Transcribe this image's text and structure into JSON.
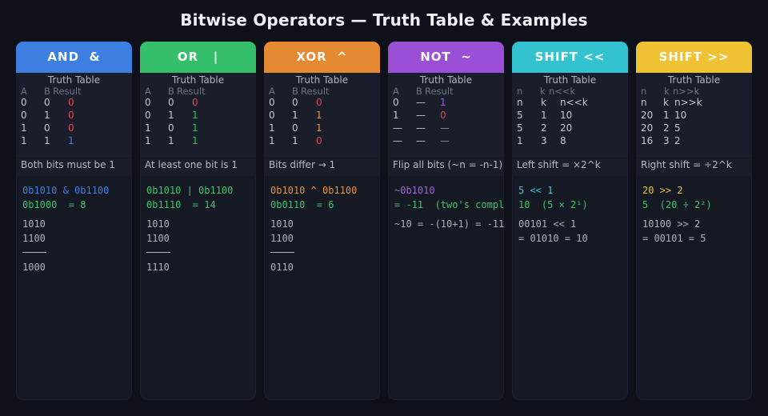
{
  "title": "Bitwise Operators — Truth Table & Examples",
  "panels": [
    {
      "header": "AND  &",
      "color": "#3d7fe0",
      "tt_title": "Truth Table",
      "cols": [
        "A",
        "B",
        "Result"
      ],
      "rows": [
        [
          "0",
          "0",
          "0"
        ],
        [
          "0",
          "1",
          "0"
        ],
        [
          "1",
          "0",
          "0"
        ],
        [
          "1",
          "1",
          "1"
        ]
      ],
      "result_colors": [
        "#e0434f",
        "#e0434f",
        "#e0434f",
        "#3d7fe0"
      ],
      "desc": "Both bits must be 1",
      "expr1": "0b1010 & 0b1100",
      "expr2": "0b1000  = 8",
      "expr1_color": "#3d7fe0",
      "expr2_color": "#3cc46b",
      "lines": [
        "1010",
        "1100"
      ],
      "result_line": "1000"
    },
    {
      "header": "OR   |",
      "color": "#36bf6a",
      "tt_title": "Truth Table",
      "cols": [
        "A",
        "B",
        "Result"
      ],
      "rows": [
        [
          "0",
          "0",
          "0"
        ],
        [
          "0",
          "1",
          "1"
        ],
        [
          "1",
          "0",
          "1"
        ],
        [
          "1",
          "1",
          "1"
        ]
      ],
      "result_colors": [
        "#e0434f",
        "#3cc46b",
        "#3cc46b",
        "#3cc46b"
      ],
      "desc": "At least one bit is 1",
      "expr1": "0b1010 | 0b1100",
      "expr2": "0b1110  = 14",
      "expr1_color": "#3cc46b",
      "expr2_color": "#3cc46b",
      "lines": [
        "1010",
        "1100"
      ],
      "result_line": "1110"
    },
    {
      "header": "XOR  ^",
      "color": "#e58a33",
      "tt_title": "Truth Table",
      "cols": [
        "A",
        "B",
        "Result"
      ],
      "rows": [
        [
          "0",
          "0",
          "0"
        ],
        [
          "0",
          "1",
          "1"
        ],
        [
          "1",
          "0",
          "1"
        ],
        [
          "1",
          "1",
          "0"
        ]
      ],
      "result_colors": [
        "#e0434f",
        "#e5913a",
        "#e5913a",
        "#e0434f"
      ],
      "desc": "Bits differ → 1",
      "expr1": "0b1010 ^ 0b1100",
      "expr2": "0b0110  = 6",
      "expr1_color": "#e5913a",
      "expr2_color": "#3cc46b",
      "lines": [
        "1010",
        "1100"
      ],
      "result_line": "0110"
    },
    {
      "header": "NOT  ~",
      "color": "#9a4fd6",
      "tt_title": "Truth Table",
      "cols": [
        "A",
        "B",
        "Result"
      ],
      "rows": [
        [
          "0",
          "—",
          "1"
        ],
        [
          "1",
          "—",
          "0"
        ],
        [
          "—",
          "—",
          "—"
        ],
        [
          "—",
          "—",
          "—"
        ]
      ],
      "result_colors": [
        "#a55ee0",
        "#e0434f",
        "#8a909c",
        "#8a909c"
      ],
      "desc": "Flip all bits (~n = -n-1)",
      "expr1": "~0b1010",
      "expr2": "= -11  (two's compl",
      "expr1_color": "#a55ee0",
      "expr2_color": "#3cc46b",
      "lines": [
        "~10 = -(10+1) = -11"
      ],
      "result_line": ""
    },
    {
      "header": "SHIFT <<",
      "color": "#33c3d0",
      "tt_title": "Truth Table",
      "cols": [
        "n",
        "k",
        "n<<k"
      ],
      "rows": [
        [
          "n",
          "k",
          "n<<k"
        ],
        [
          "5",
          "1",
          "10"
        ],
        [
          "5",
          "2",
          "20"
        ],
        [
          "1",
          "3",
          "8"
        ]
      ],
      "result_colors": [
        "#c3c8d2",
        "#c3c8d2",
        "#c3c8d2",
        "#c3c8d2"
      ],
      "desc": "Left shift = ×2^k",
      "expr1": "5 << 1",
      "expr2": "10  (5 × 2¹)",
      "expr1_color": "#3ec8d6",
      "expr2_color": "#3cc46b",
      "lines": [
        "00101 << 1",
        "= 01010 = 10"
      ],
      "result_line": ""
    },
    {
      "header": "SHIFT >>",
      "color": "#eec232",
      "tt_title": "Truth Table",
      "cols": [
        "n",
        "k",
        "n>>k"
      ],
      "rows": [
        [
          "n",
          "k",
          "n>>k"
        ],
        [
          "20",
          "1",
          "10"
        ],
        [
          "20",
          "2",
          "5"
        ],
        [
          "16",
          "3",
          "2"
        ]
      ],
      "result_colors": [
        "#c3c8d2",
        "#c3c8d2",
        "#c3c8d2",
        "#c3c8d2"
      ],
      "desc": "Right shift = ÷2^k",
      "expr1": "20 >> 2",
      "expr2": "5  (20 ÷ 2²)",
      "expr1_color": "#efc63a",
      "expr2_color": "#3cc46b",
      "lines": [
        "10100 >> 2",
        "= 00101 = 5"
      ],
      "result_line": ""
    }
  ]
}
